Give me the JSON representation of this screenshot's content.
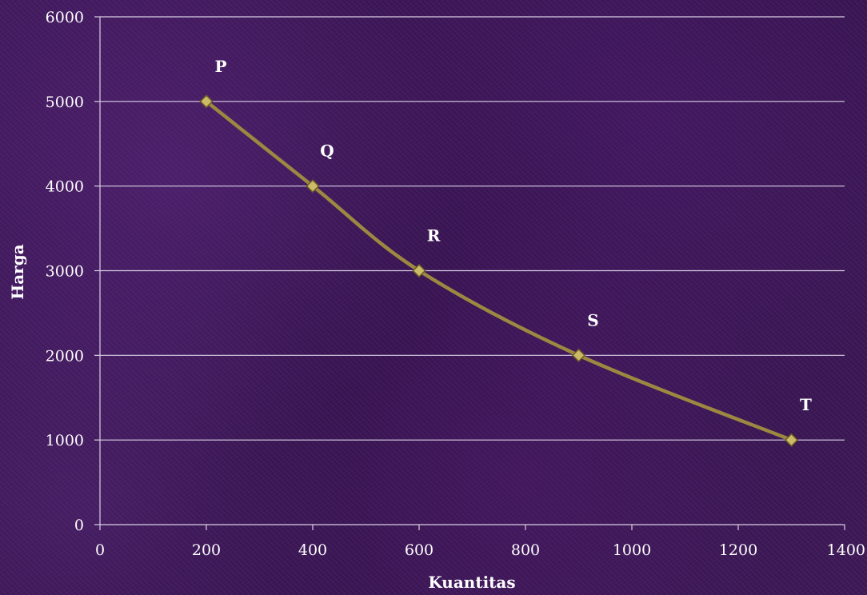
{
  "chart_data": {
    "type": "line",
    "title": "",
    "xlabel": "Kuantitas",
    "ylabel": "Harga",
    "xlim": [
      0,
      1400
    ],
    "ylim": [
      0,
      6000
    ],
    "x_ticks": [
      0,
      200,
      400,
      600,
      800,
      1000,
      1200,
      1400
    ],
    "y_ticks": [
      0,
      1000,
      2000,
      3000,
      4000,
      5000,
      6000
    ],
    "grid": "horizontal",
    "line_color": "#9c8840",
    "marker_color": "#ccbb66",
    "series": [
      {
        "x": [
          200,
          400,
          600,
          900,
          1300
        ],
        "y": [
          5000,
          4000,
          3000,
          2000,
          1000
        ],
        "point_labels": [
          "P",
          "Q",
          "R",
          "S",
          "T"
        ]
      }
    ]
  }
}
